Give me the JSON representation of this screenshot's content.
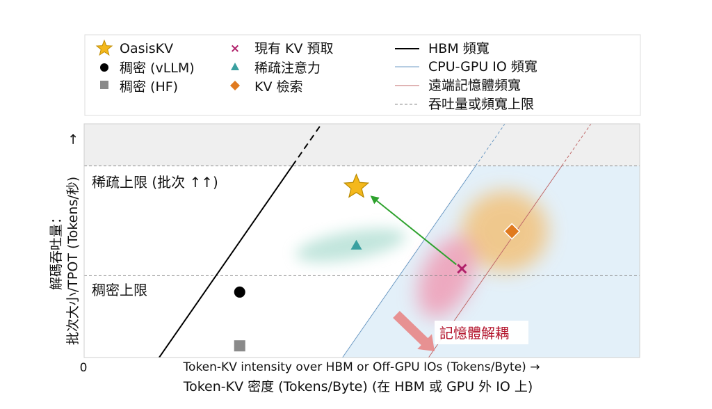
{
  "chart_data": {
    "type": "scatter",
    "title": "",
    "xlabel_line1": "Token-KV intensity over HBM or Off-GPU IOs (Tokens/Byte) →",
    "xlabel_line2": "Token-KV 密度 (Tokens/Byte) (在 HBM 或 GPU 外 IO 上)",
    "ylabel_line1": "解碼吞吐量：",
    "ylabel_line2": "批次大小/TPOT (Tokens/秒)",
    "ylabel_arrow": "→",
    "x_origin_label": "0",
    "region_labels": {
      "sparse_ceiling": "稀疏上限 (批次 ↑↑)",
      "dense_ceiling": "稠密上限"
    },
    "annotation": "記憶體解耦",
    "legend": {
      "col1": [
        {
          "label": "OasisKV",
          "marker": "star",
          "color": "#f4b81c"
        },
        {
          "label": "稠密 (vLLM)",
          "marker": "circle",
          "color": "#000000"
        },
        {
          "label": "稠密 (HF)",
          "marker": "square",
          "color": "#8a8a8a"
        }
      ],
      "col2": [
        {
          "label": "現有 KV 預取",
          "marker": "x",
          "color": "#b0206a"
        },
        {
          "label": "稀疏注意力",
          "marker": "triangle",
          "color": "#3aa0a0"
        },
        {
          "label": "KV 檢索",
          "marker": "diamond",
          "color": "#e07a1f"
        }
      ],
      "col3": [
        {
          "label": "HBM 頻寬",
          "line": "solid",
          "color": "#000000"
        },
        {
          "label": "CPU-GPU IO 頻寬",
          "line": "solid",
          "color": "#6e9bc4"
        },
        {
          "label": "遠端記憶體頻寬",
          "line": "solid",
          "color": "#c06a6a"
        },
        {
          "label": "吞吐量或頻寬上限",
          "line": "dashed",
          "color": "#888888"
        }
      ]
    },
    "points": [
      {
        "name": "OasisKV",
        "marker": "star",
        "x": 4.9,
        "y": 7.3
      },
      {
        "name": "稀疏注意力",
        "marker": "triangle",
        "x": 4.9,
        "y": 4.8
      },
      {
        "name": "現有 KV 預取",
        "marker": "x",
        "x": 6.8,
        "y": 3.8
      },
      {
        "name": "KV 檢索",
        "marker": "diamond",
        "x": 7.7,
        "y": 5.4
      },
      {
        "name": "稠密 (vLLM)",
        "marker": "circle",
        "x": 2.8,
        "y": 2.8
      },
      {
        "name": "稠密 (HF)",
        "marker": "square",
        "x": 2.8,
        "y": 0.5
      }
    ],
    "ceilings": {
      "sparse": 8.2,
      "dense": 3.5
    },
    "bandwidth_lines": {
      "hbm": {
        "x_at_y0": 1.35,
        "slope": 3.42
      },
      "cpu_gpu_io": {
        "x_at_y0": 4.65,
        "slope": 3.42
      },
      "remote_memory": {
        "x_at_y0": 6.2,
        "slope": 3.42
      }
    },
    "xlim": [
      0,
      10
    ],
    "ylim": [
      0,
      10
    ],
    "colors": {
      "oasis_star": "#f4b81c",
      "retrieval_diamond": "#e07a1f",
      "prefetch_x": "#b0206a",
      "sparse_triangle": "#3aa0a0",
      "move_arrow": "#2ea22e",
      "decouple_arrow": "#e88080",
      "annotation_text": "#b3122a",
      "sparse_band": "#efefef",
      "offgpu_region": "#e3f0f9"
    }
  }
}
